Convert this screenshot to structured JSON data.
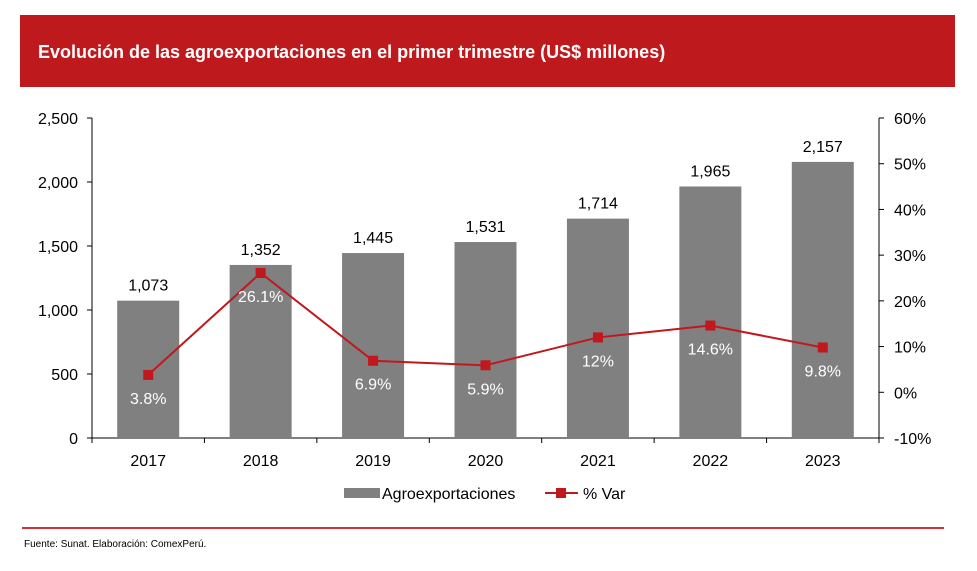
{
  "title": "Evolución de las agroexportaciones en el primer trimestre (US$ millones)",
  "source": "Fuente: Sunat. Elaboración: ComexPerú.",
  "colors": {
    "header": "#be1a1d",
    "bar": "#808080",
    "line": "#c0181c"
  },
  "chart_data": {
    "type": "bar",
    "title": "Evolución de las agroexportaciones en el primer trimestre (US$ millones)",
    "categories": [
      "2017",
      "2018",
      "2019",
      "2020",
      "2021",
      "2022",
      "2023"
    ],
    "series": [
      {
        "name": "Agroexportaciones",
        "type": "bar",
        "axis": "left",
        "values": [
          1073,
          1352,
          1445,
          1531,
          1714,
          1965,
          2157
        ],
        "labels": [
          "1,073",
          "1,352",
          "1,445",
          "1,531",
          "1,714",
          "1,965",
          "2,157"
        ]
      },
      {
        "name": "% Var",
        "type": "line",
        "axis": "right",
        "values": [
          3.8,
          26.1,
          6.9,
          5.9,
          12,
          14.6,
          9.8
        ],
        "labels": [
          "3.8%",
          "26.1%",
          "6.9%",
          "5.9%",
          "12%",
          "14.6%",
          "9.8%"
        ]
      }
    ],
    "ylim": [
      0,
      2500
    ],
    "yticks": [
      "0",
      "500",
      "1,000",
      "1,500",
      "2,000",
      "2,500"
    ],
    "y2lim": [
      -10,
      60
    ],
    "y2ticks": [
      "-10%",
      "0%",
      "10%",
      "20%",
      "30%",
      "40%",
      "50%",
      "60%"
    ],
    "legend": "bottom",
    "grid": false
  }
}
